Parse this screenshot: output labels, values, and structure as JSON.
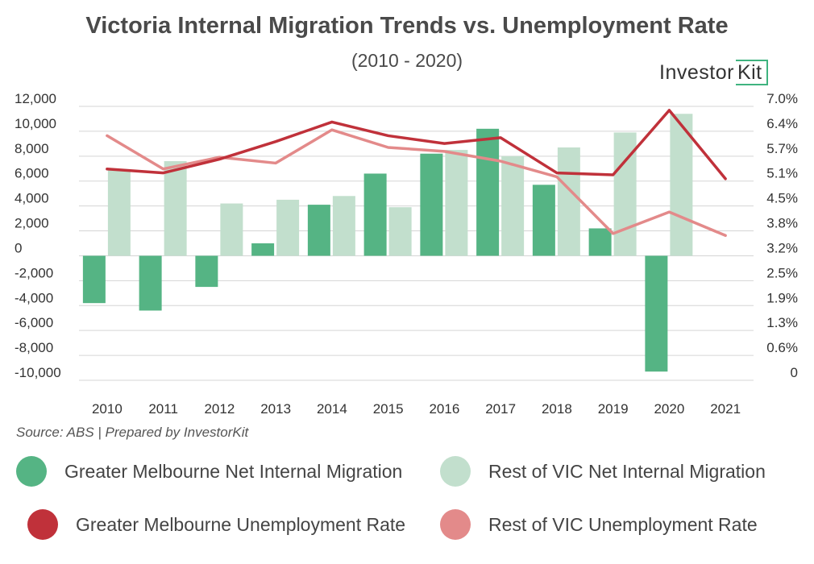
{
  "header": {
    "title": "Victoria Internal Migration Trends vs. Unemployment Rate",
    "subtitle": "(2010 - 2020)"
  },
  "logo": {
    "text_main": "Investor",
    "text_box": "Kit",
    "accent": "#3fb37f"
  },
  "source": "Source: ABS | Prepared by InvestorKit",
  "colors": {
    "gm_migration": "#55b484",
    "rest_migration": "#c2dfcd",
    "gm_unemployment": "#c0313a",
    "rest_unemployment": "#e38a8a",
    "grid": "#d5d5d5",
    "text": "#333333"
  },
  "chart_data": {
    "type": "bar",
    "categories": [
      "2010",
      "2011",
      "2012",
      "2013",
      "2014",
      "2015",
      "2016",
      "2017",
      "2018",
      "2019",
      "2020",
      "2021"
    ],
    "y_left": {
      "ylim": [
        -10000,
        12000
      ],
      "ticks": [
        12000,
        10000,
        8000,
        6000,
        4000,
        2000,
        0,
        -2000,
        -4000,
        -6000,
        -8000,
        -10000
      ],
      "tick_labels": [
        "12,000",
        "10,000",
        "8,000",
        "6,000",
        "4,000",
        "2,000",
        "0",
        "-2,000",
        "-4,000",
        "-6,000",
        "-8,000",
        "-10,000"
      ]
    },
    "y_right": {
      "ylim": [
        0,
        7.0
      ],
      "tick_labels": [
        "7.0%",
        "6.4%",
        "5.7%",
        "5.1%",
        "4.5%",
        "3.8%",
        "3.2%",
        "2.5%",
        "1.9%",
        "1.3%",
        "0.6%",
        "0"
      ]
    },
    "series": [
      {
        "name": "Greater Melbourne Net Internal Migration",
        "kind": "bar",
        "axis": "left",
        "values": [
          -3800,
          -4400,
          -2500,
          1000,
          4100,
          6600,
          8200,
          10200,
          5700,
          2200,
          -9300,
          null
        ]
      },
      {
        "name": "Rest of VIC Net Internal Migration",
        "kind": "bar",
        "axis": "left",
        "values": [
          6900,
          7600,
          4200,
          4500,
          4800,
          3900,
          8500,
          8000,
          8700,
          9900,
          11400,
          null
        ]
      },
      {
        "name": "Greater Melbourne Unemployment Rate",
        "kind": "line",
        "axis": "right",
        "values": [
          5.4,
          5.3,
          5.65,
          6.1,
          6.6,
          6.25,
          6.05,
          6.2,
          5.3,
          5.25,
          6.9,
          5.15
        ]
      },
      {
        "name": "Rest of VIC Unemployment Rate",
        "kind": "line",
        "axis": "right",
        "values": [
          6.25,
          5.4,
          5.7,
          5.55,
          6.4,
          5.95,
          5.85,
          5.6,
          5.2,
          3.75,
          4.3,
          3.7
        ]
      }
    ],
    "legend": "bottom"
  }
}
